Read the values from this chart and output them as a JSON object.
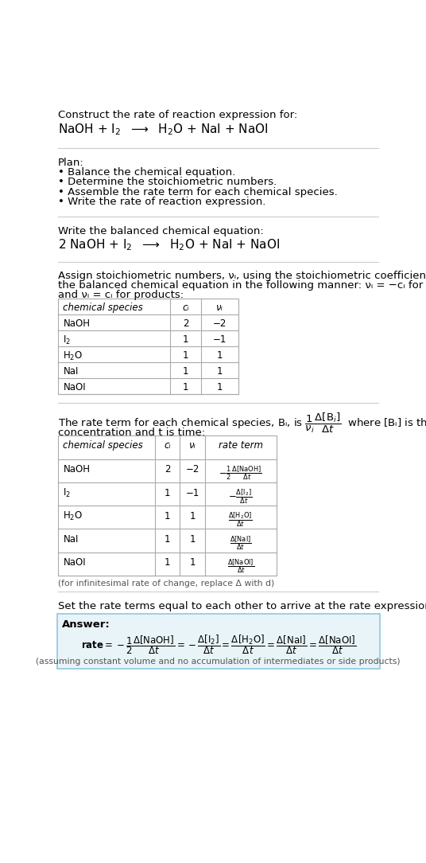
{
  "bg_color": "#ffffff",
  "text_color": "#000000",
  "gray_text": "#555555",
  "light_blue_bg": "#e8f4f8",
  "table_border": "#aaaaaa",
  "title_line1": "Construct the rate of reaction expression for:",
  "plan_header": "Plan:",
  "plan_items": [
    "• Balance the chemical equation.",
    "• Determine the stoichiometric numbers.",
    "• Assemble the rate term for each chemical species.",
    "• Write the rate of reaction expression."
  ],
  "balanced_header": "Write the balanced chemical equation:",
  "stoich_text1": "Assign stoichiometric numbers, νᵢ, using the stoichiometric coefficients, cᵢ, from",
  "stoich_text2": "the balanced chemical equation in the following manner: νᵢ = −cᵢ for reactants",
  "stoich_text3": "and νᵢ = cᵢ for products:",
  "table1_headers": [
    "chemical species",
    "c_i",
    "ν_i"
  ],
  "table1_rows": [
    [
      "NaOH",
      "2",
      "−2"
    ],
    [
      "I_2",
      "1",
      "−1"
    ],
    [
      "H_2O",
      "1",
      "1"
    ],
    [
      "NaI",
      "1",
      "1"
    ],
    [
      "NaOI",
      "1",
      "1"
    ]
  ],
  "rate_text1": "The rate term for each chemical species, Bᵢ, is",
  "rate_text2": "where [Bᵢ] is the amount",
  "rate_text3": "concentration and t is time:",
  "table2_headers": [
    "chemical species",
    "c_i",
    "ν_i",
    "rate term"
  ],
  "table2_rows": [
    [
      "NaOH",
      "2",
      "−2"
    ],
    [
      "I_2",
      "1",
      "−1"
    ],
    [
      "H_2O",
      "1",
      "1"
    ],
    [
      "NaI",
      "1",
      "1"
    ],
    [
      "NaOI",
      "1",
      "1"
    ]
  ],
  "infinitesimal_note": "(for infinitesimal rate of change, replace Δ with d)",
  "set_equal_text": "Set the rate terms equal to each other to arrive at the rate expression:",
  "answer_label": "Answer:",
  "answer_note": "(assuming constant volume and no accumulation of intermediates or side products)",
  "species_math": [
    "NaOH",
    "I$_2$",
    "H$_2$O",
    "NaI",
    "NaOI"
  ],
  "rate_terms_math": [
    "$-\\frac{1}{2}\\frac{\\Delta[\\mathrm{NaOH}]}{\\Delta t}$",
    "$-\\frac{\\Delta[\\mathrm{I}_2]}{\\Delta t}$",
    "$\\frac{\\Delta[\\mathrm{H}_2\\mathrm{O}]}{\\Delta t}$",
    "$\\frac{\\Delta[\\mathrm{NaI}]}{\\Delta t}$",
    "$\\frac{\\Delta[\\mathrm{NaOI}]}{\\Delta t}$"
  ]
}
